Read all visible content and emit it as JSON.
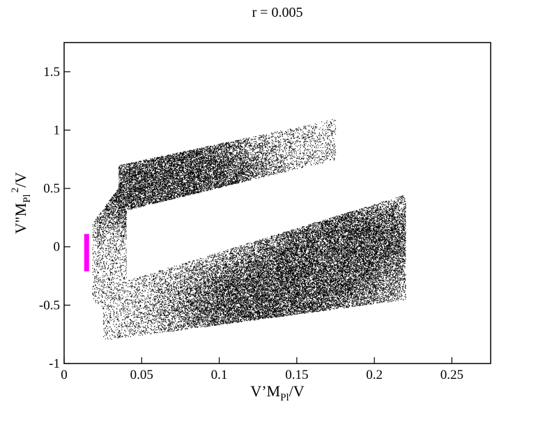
{
  "chart_data": {
    "type": "scatter",
    "title": "r = 0.005",
    "xlabel": {
      "prefix": "V’M",
      "subscript": "Pl",
      "suffix": "/V"
    },
    "ylabel": {
      "prefix": "V\"M",
      "subscript": "Pl",
      "superscript": "2",
      "suffix": "/V"
    },
    "xlim": [
      0,
      0.275
    ],
    "ylim": [
      -1,
      1.75
    ],
    "xticks": [
      {
        "value": 0,
        "label": "0"
      },
      {
        "value": 0.05,
        "label": "0.05"
      },
      {
        "value": 0.1,
        "label": "0.1"
      },
      {
        "value": 0.15,
        "label": "0.15"
      },
      {
        "value": 0.2,
        "label": "0.2"
      },
      {
        "value": 0.25,
        "label": "0.25"
      }
    ],
    "yticks": [
      {
        "value": -1,
        "label": "-1"
      },
      {
        "value": -0.5,
        "label": "-0.5"
      },
      {
        "value": 0,
        "label": "0"
      },
      {
        "value": 0.5,
        "label": "0.5"
      },
      {
        "value": 1,
        "label": "1"
      },
      {
        "value": 1.5,
        "label": "1.5"
      }
    ],
    "grid": false,
    "legend": "none",
    "series": [
      {
        "kind": "point-cloud",
        "color": "#000000",
        "regions": [
          {
            "x": [
              0.035,
              0.175
            ],
            "y_bottom": [
              0.3,
              0.75
            ],
            "y_top": [
              0.7,
              1.1
            ]
          },
          {
            "x": [
              0.025,
              0.22
            ],
            "y_bottom": [
              -0.8,
              -0.45
            ],
            "y_top": [
              -0.35,
              0.45
            ]
          },
          {
            "x": [
              0.018,
              0.04
            ],
            "y_bottom": [
              -0.45,
              -0.7
            ],
            "y_top": [
              0.2,
              0.6
            ]
          }
        ],
        "density_peaks": [
          {
            "x": 0.08,
            "y": 0.65
          },
          {
            "x": 0.06,
            "y": 0.45
          },
          {
            "x": 0.16,
            "y": -0.25
          },
          {
            "x": 0.12,
            "y": -0.5
          },
          {
            "x": 0.19,
            "y": 0.1
          }
        ]
      },
      {
        "kind": "vertical-bar",
        "color": "#ff00ff",
        "x": 0.0145,
        "y_range": [
          -0.21,
          0.11
        ]
      }
    ]
  }
}
